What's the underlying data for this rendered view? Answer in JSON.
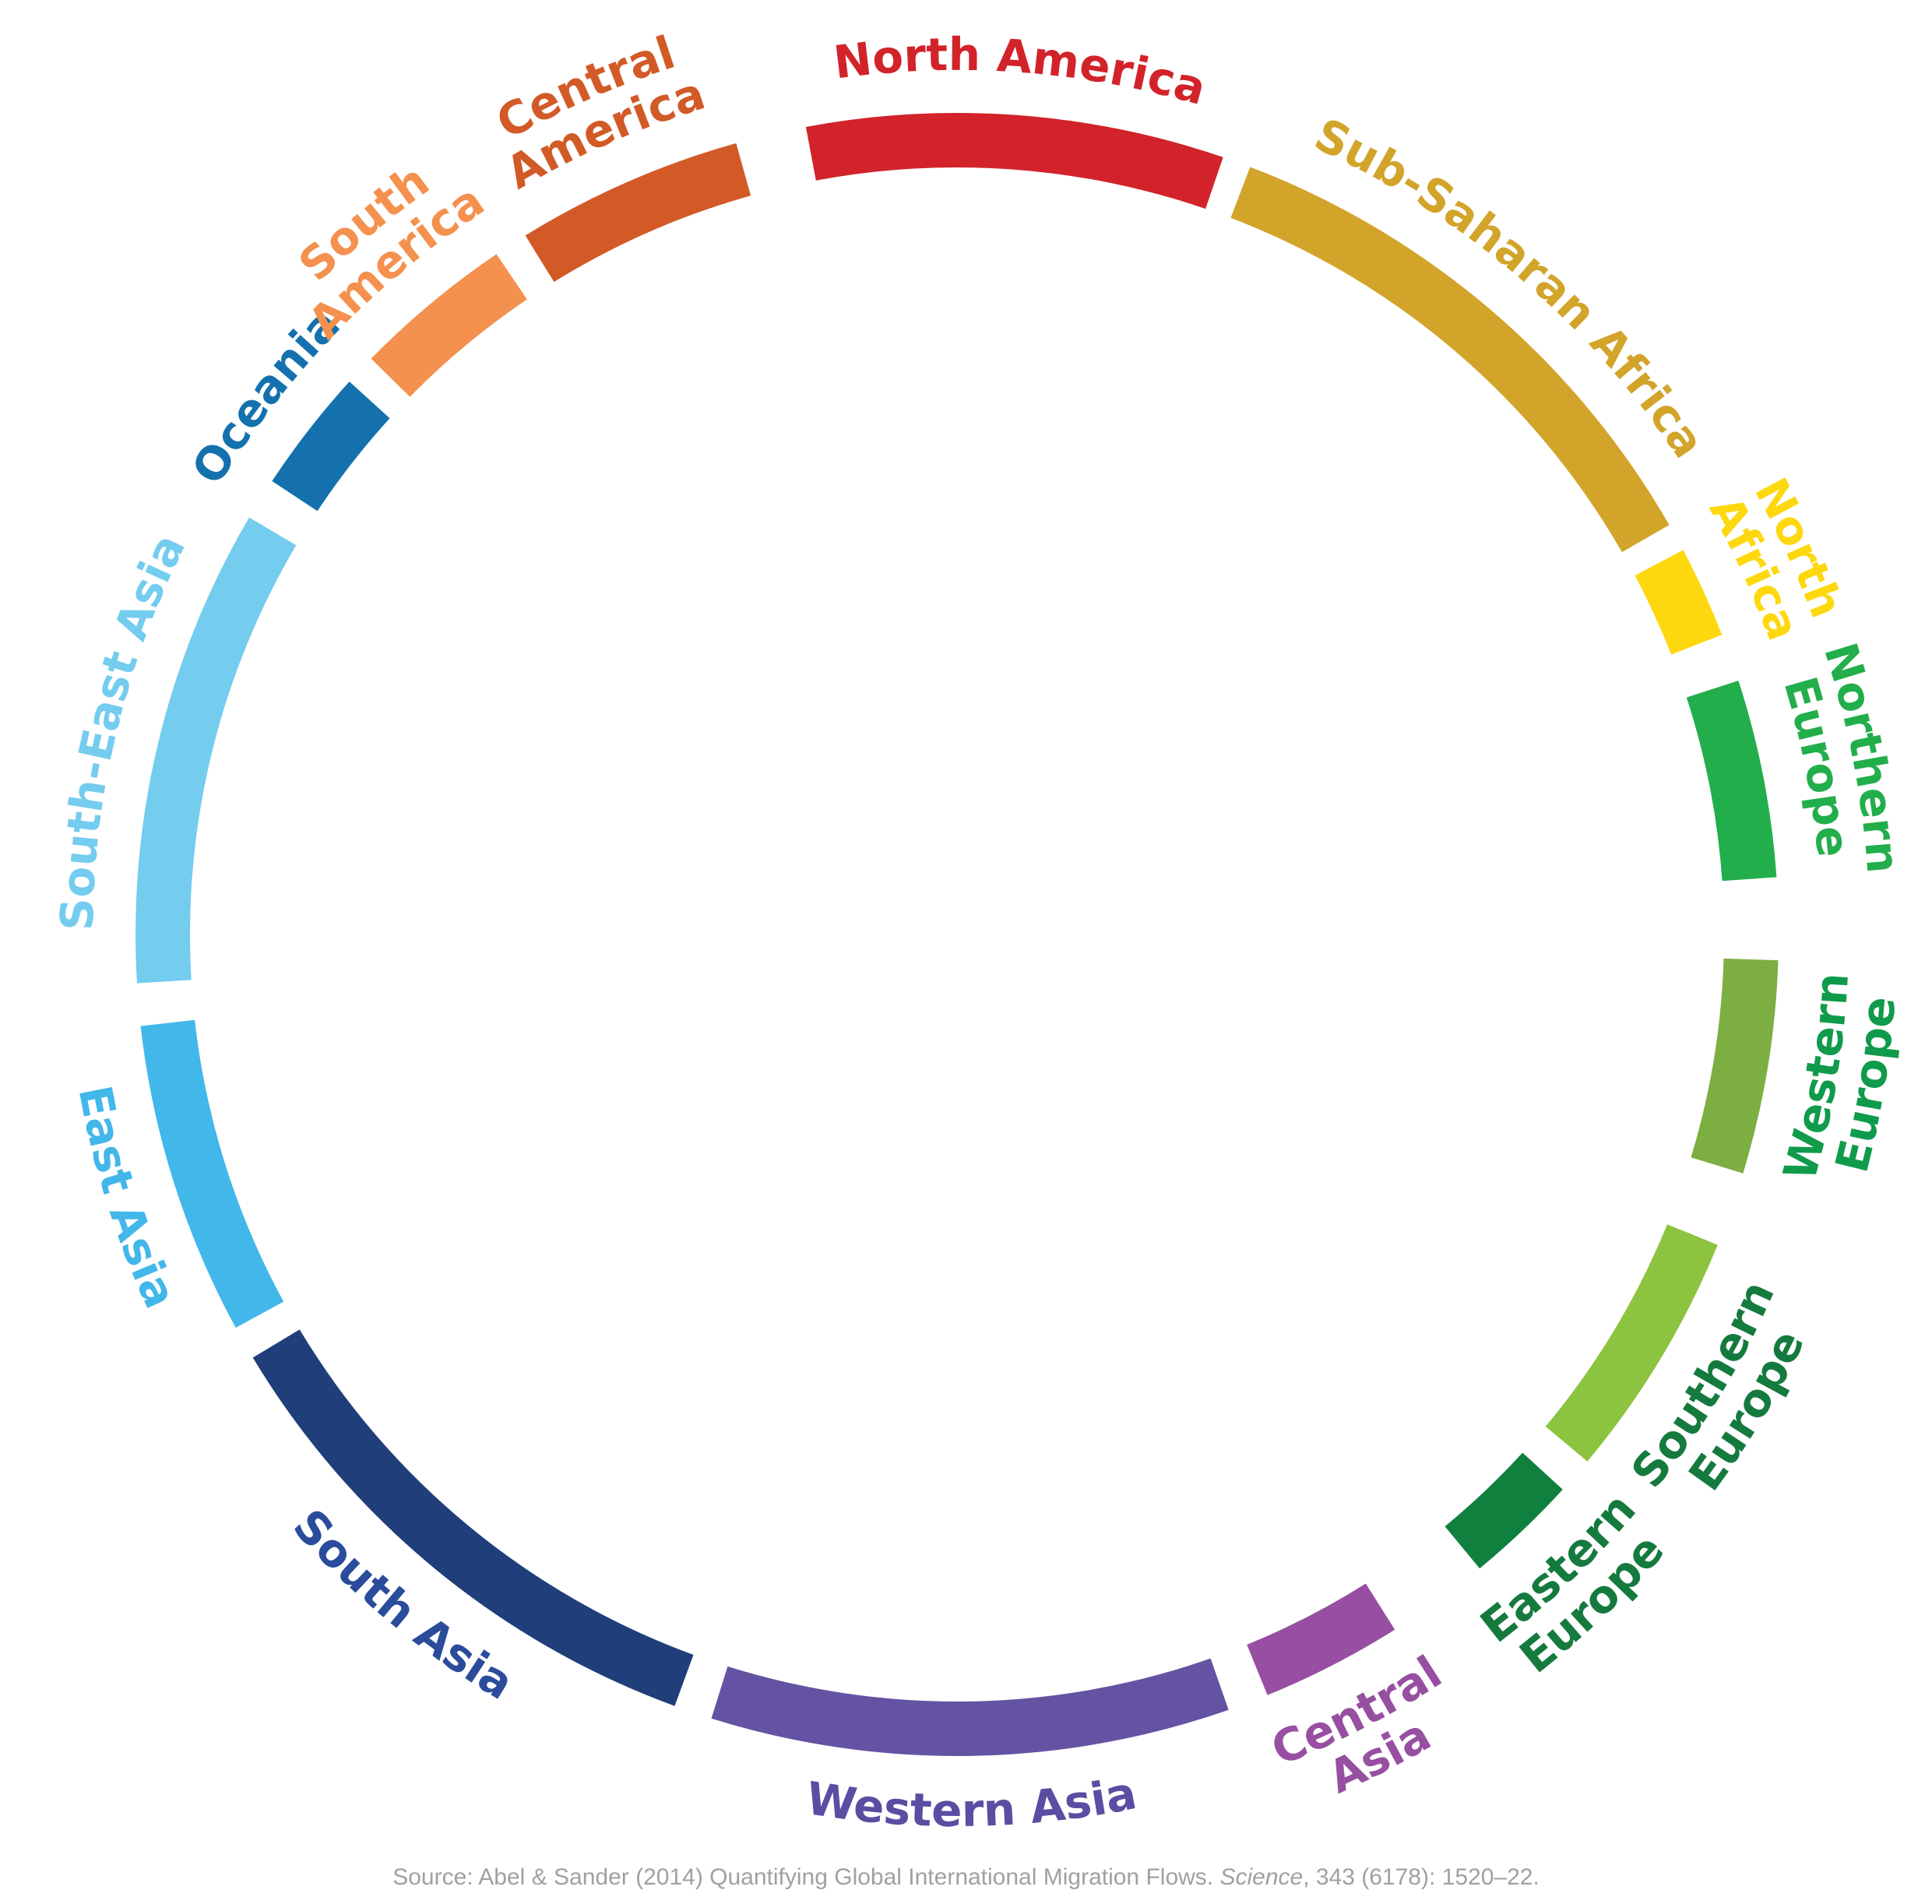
{
  "chart_data": {
    "type": "chord-ring",
    "regions": [
      {
        "name": "North America",
        "lines": [
          "North America"
        ],
        "color": "#D2232A",
        "label_color": "#D2232A",
        "start": 349.4,
        "end": 18.9
      },
      {
        "name": "Sub-Saharan Africa",
        "lines": [
          "Sub-Saharan Africa"
        ],
        "color": "#D2A42A",
        "label_color": "#D2A42A",
        "start": 20.9,
        "end": 60.1
      },
      {
        "name": "North Africa",
        "lines": [
          "North",
          "Africa"
        ],
        "color": "#FDD80F",
        "label_color": "#FDD80F",
        "start": 62.1,
        "end": 68.6
      },
      {
        "name": "Northern Europe",
        "lines": [
          "Northern",
          "Europe"
        ],
        "color": "#22AE4B",
        "label_color": "#22AE4B",
        "start": 72.0,
        "end": 86.0
      },
      {
        "name": "Western Europe",
        "lines": [
          "Western",
          "Europe"
        ],
        "color": "#7DAE41",
        "label_color": "#0F9B4B",
        "start": 91.8,
        "end": 106.9
      },
      {
        "name": "Southern Europe",
        "lines": [
          "Southern",
          "Europe"
        ],
        "color": "#8CC43F",
        "label_color": "#157A3E",
        "start": 112.2,
        "end": 129.9
      },
      {
        "name": "Eastern Europe",
        "lines": [
          "Eastern",
          "Europe"
        ],
        "color": "#10803F",
        "label_color": "#157A3E",
        "start": 132.5,
        "end": 140.5
      },
      {
        "name": "Central Asia",
        "lines": [
          "Central",
          "Asia"
        ],
        "color": "#974FA1",
        "label_color": "#974FA1",
        "start": 147.8,
        "end": 157.8
      },
      {
        "name": "Western Asia",
        "lines": [
          "Western Asia"
        ],
        "color": "#6453A2",
        "label_color": "#5A4EA2",
        "start": 160.7,
        "end": 197.4
      },
      {
        "name": "South Asia",
        "lines": [
          "South Asia"
        ],
        "color": "#203E7A",
        "label_color": "#2B4C9B",
        "start": 200.1,
        "end": 239.0
      },
      {
        "name": "East Asia",
        "lines": [
          "East Asia"
        ],
        "color": "#42B7EA",
        "label_color": "#42B7EA",
        "start": 241.4,
        "end": 263.6
      },
      {
        "name": "South-East Asia",
        "lines": [
          "South-East Asia"
        ],
        "color": "#74CCEE",
        "label_color": "#74CCEE",
        "start": 266.6,
        "end": 300.5
      },
      {
        "name": "Oceania",
        "lines": [
          "Oceania"
        ],
        "color": "#1471AE",
        "label_color": "#1471AE",
        "start": 303.5,
        "end": 312.3
      },
      {
        "name": "South America",
        "lines": [
          "South",
          "America"
        ],
        "color": "#F4914E",
        "label_color": "#F4914E",
        "start": 314.5,
        "end": 325.9
      },
      {
        "name": "Central America",
        "lines": [
          "Central",
          "America"
        ],
        "color": "#D25A27",
        "label_color": "#D25A27",
        "start": 328.3,
        "end": 344.4
      }
    ]
  },
  "source": {
    "prefix": "Source: Abel & Sander (2014) Quantifying Global International Migration Flows. ",
    "journal": "Science",
    "suffix": ", 343 (6178): 1520–22."
  }
}
